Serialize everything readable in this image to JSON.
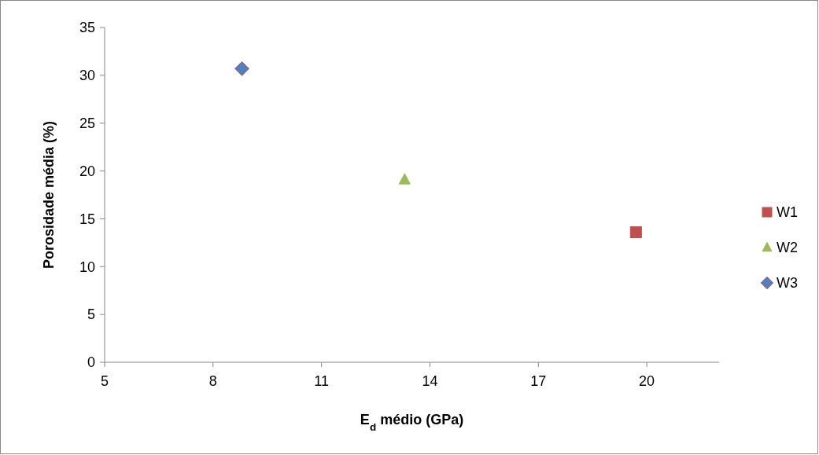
{
  "chart_data": {
    "type": "scatter",
    "xlabel": "E$_{d}$ médio (GPa)",
    "ylabel": "Porosidade média (%)",
    "xlim": [
      5,
      22
    ],
    "xticks": [
      5,
      8,
      11,
      14,
      17,
      20
    ],
    "ylim": [
      0,
      35
    ],
    "yticks": [
      0,
      5,
      10,
      15,
      20,
      25,
      30,
      35
    ],
    "grid": false,
    "legend": "right",
    "series": [
      {
        "name": "W1",
        "color": "#c0504d",
        "marker": "square",
        "x": [
          19.7
        ],
        "values": [
          13.6
        ]
      },
      {
        "name": "W2",
        "color": "#9bbb59",
        "marker": "triangle",
        "x": [
          13.3
        ],
        "values": [
          19.1
        ]
      },
      {
        "name": "W3",
        "color": "#4f81bd",
        "marker": "diamond",
        "x": [
          8.8
        ],
        "values": [
          30.7
        ]
      }
    ]
  }
}
